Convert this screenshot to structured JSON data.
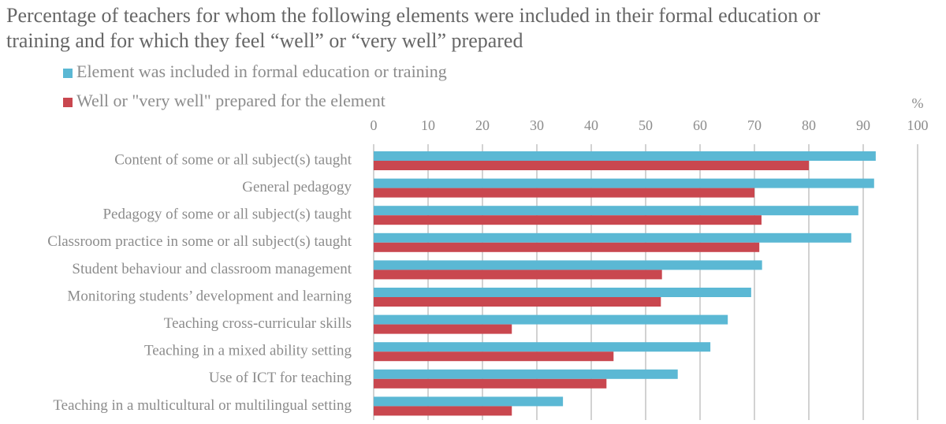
{
  "chart_data": {
    "type": "hbar",
    "title": "Percentage of teachers for whom the following elements were included in their formal education or training and for which they feel “well” or “very well” prepared",
    "x_unit": "%",
    "categories": [
      "Content of some or all subject(s) taught",
      "General pedagogy",
      "Pedagogy of some or all subject(s) taught",
      "Classroom practice in some or all subject(s) taught",
      "Student behaviour and classroom management",
      "Monitoring students’ development and learning",
      "Teaching cross-curricular skills",
      "Teaching in a mixed ability setting",
      "Use of ICT for teaching",
      "Teaching in a multicultural or multilingual setting"
    ],
    "series": [
      {
        "name": "Element was included in formal education or training",
        "color": "#5bb8d4",
        "values": [
          92.3,
          92.0,
          89.1,
          87.8,
          71.4,
          69.4,
          65.1,
          61.9,
          55.9,
          34.8
        ]
      },
      {
        "name": "Well or \"very well\" prepared for the element",
        "color": "#c9474f",
        "values": [
          80.0,
          70.0,
          71.3,
          70.9,
          53.0,
          52.8,
          25.4,
          44.1,
          42.8,
          25.4
        ]
      }
    ],
    "xlim": [
      0,
      100
    ],
    "xticks": [
      0,
      10,
      20,
      30,
      40,
      50,
      60,
      70,
      80,
      90,
      100
    ],
    "grid": true
  }
}
